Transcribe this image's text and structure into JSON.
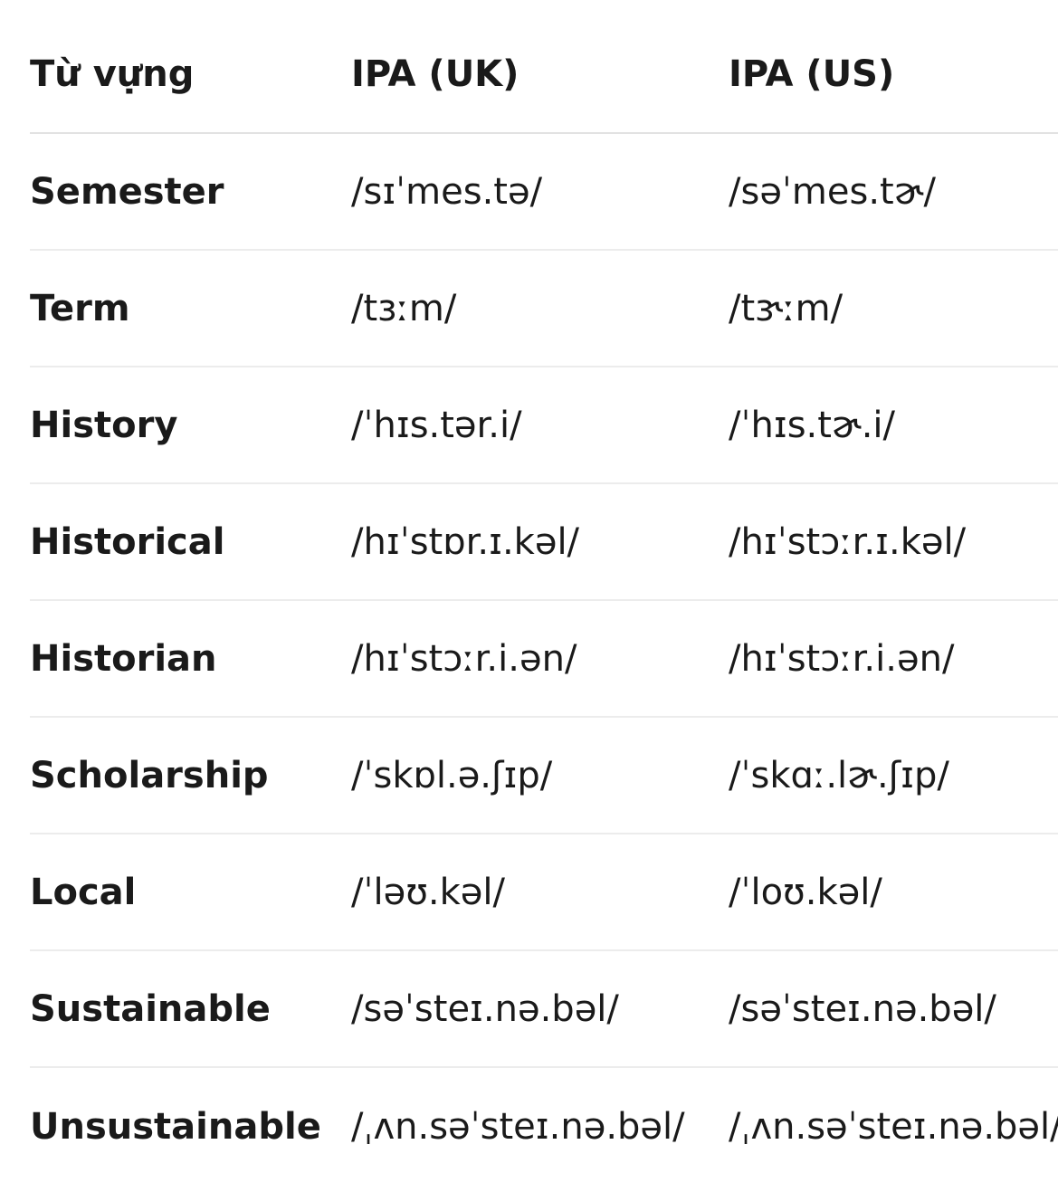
{
  "table": {
    "headers": [
      "Từ vựng",
      "IPA (UK)",
      "IPA (US)"
    ],
    "rows": [
      {
        "word": "Semester",
        "uk": "/sɪˈmes.tə/",
        "us": "/səˈmes.tɚ/"
      },
      {
        "word": "Term",
        "uk": "/tɜːm/",
        "us": "/tɝːm/"
      },
      {
        "word": "History",
        "uk": "/ˈhɪs.tər.i/",
        "us": "/ˈhɪs.tɚ.i/"
      },
      {
        "word": "Historical",
        "uk": "/hɪˈstɒr.ɪ.kəl/",
        "us": "/hɪˈstɔːr.ɪ.kəl/"
      },
      {
        "word": "Historian",
        "uk": "/hɪˈstɔːr.i.ən/",
        "us": "/hɪˈstɔːr.i.ən/"
      },
      {
        "word": "Scholarship",
        "uk": "/ˈskɒl.ə.ʃɪp/",
        "us": "/ˈskɑː.lɚ.ʃɪp/"
      },
      {
        "word": "Local",
        "uk": "/ˈləʊ.kəl/",
        "us": "/ˈloʊ.kəl/"
      },
      {
        "word": "Sustainable",
        "uk": "/səˈsteɪ.nə.bəl/",
        "us": "/səˈsteɪ.nə.bəl/"
      },
      {
        "word": "Unsustainable",
        "uk": "/ˌʌn.səˈsteɪ.nə.bəl/",
        "us": "/ˌʌn.səˈsteɪ.nə.bəl/"
      }
    ]
  }
}
